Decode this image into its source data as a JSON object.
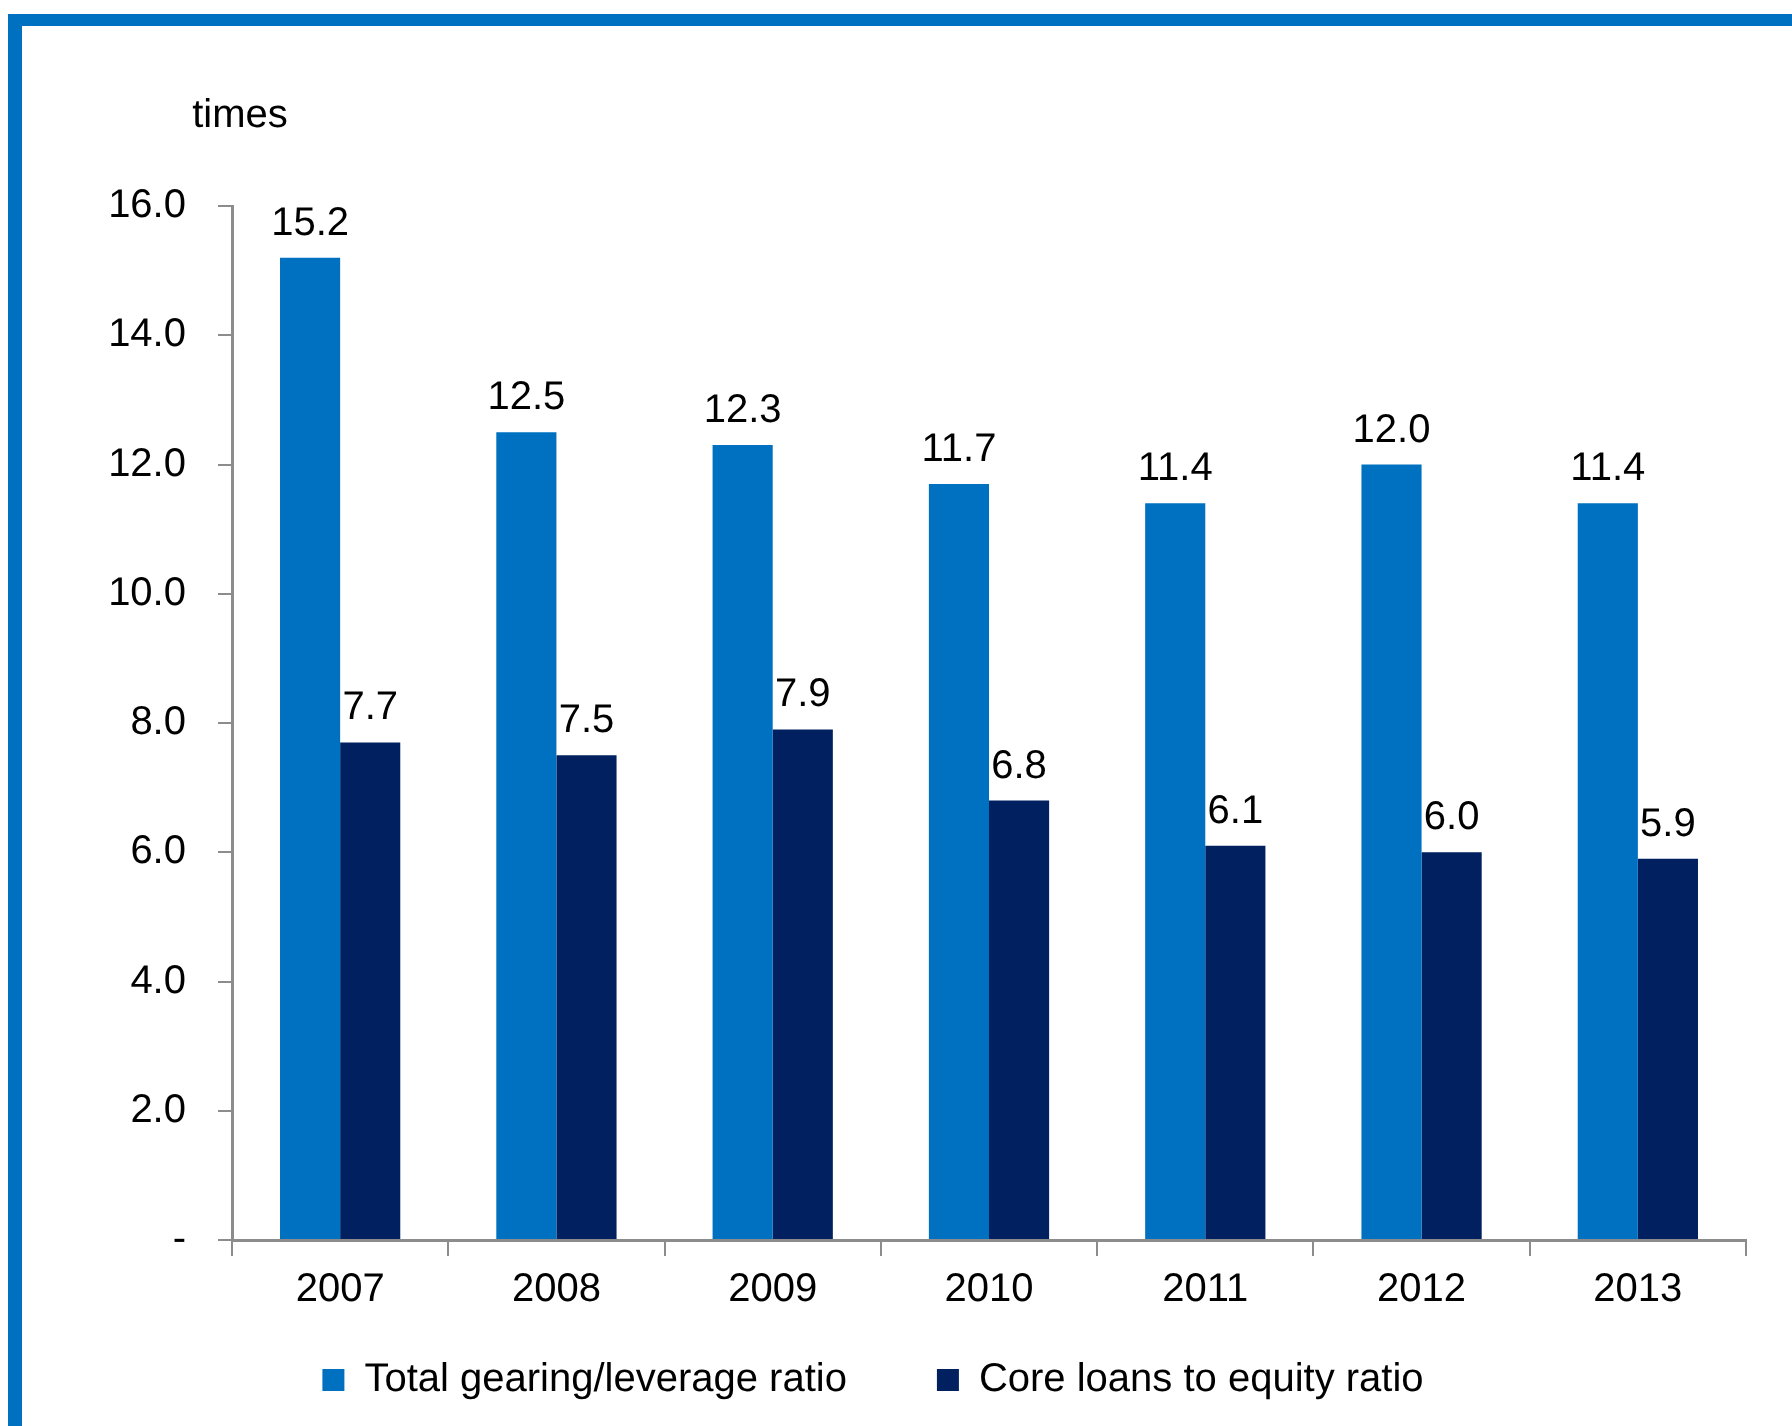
{
  "chart_data": {
    "type": "bar",
    "ylabel": "times",
    "categories": [
      "2007",
      "2008",
      "2009",
      "2010",
      "2011",
      "2012",
      "2013"
    ],
    "series": [
      {
        "name": "Total gearing/leverage ratio",
        "color": "#0070c0",
        "values": [
          15.2,
          12.5,
          12.3,
          11.7,
          11.4,
          12.0,
          11.4
        ],
        "value_labels": [
          "15.2",
          "12.5",
          "12.3",
          "11.7",
          "11.4",
          "12.0",
          "11.4"
        ]
      },
      {
        "name": "Core loans to equity ratio",
        "color": "#002060",
        "values": [
          7.7,
          7.5,
          7.9,
          6.8,
          6.1,
          6.0,
          5.9
        ],
        "value_labels": [
          "7.7",
          "7.5",
          "7.9",
          "6.8",
          "6.1",
          "6.0",
          "5.9"
        ]
      }
    ],
    "ylim": [
      0,
      16
    ],
    "yticks": [
      {
        "value": 0,
        "label": "-"
      },
      {
        "value": 2,
        "label": "2.0"
      },
      {
        "value": 4,
        "label": "4.0"
      },
      {
        "value": 6,
        "label": "6.0"
      },
      {
        "value": 8,
        "label": "8.0"
      },
      {
        "value": 10,
        "label": "10.0"
      },
      {
        "value": 12,
        "label": "12.0"
      },
      {
        "value": 14,
        "label": "14.0"
      },
      {
        "value": 16,
        "label": "16.0"
      }
    ],
    "legend": "bottom"
  }
}
